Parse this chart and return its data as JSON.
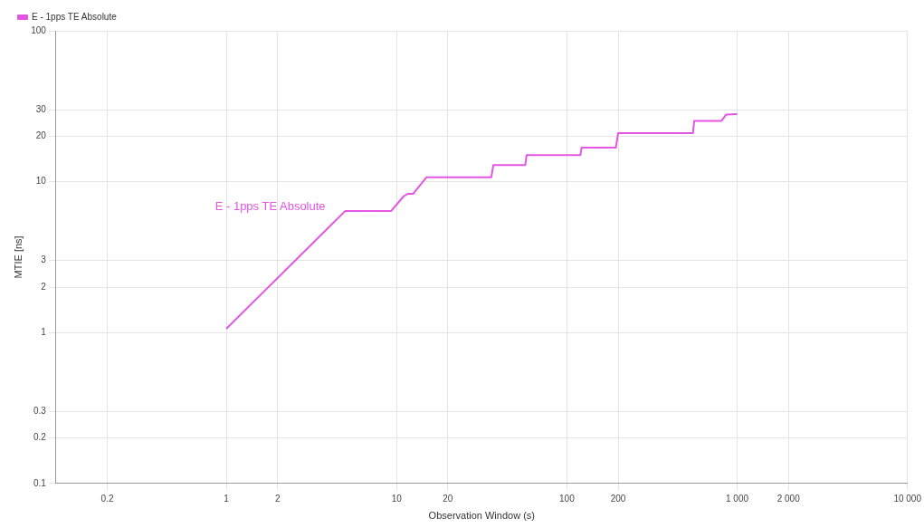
{
  "chart_data": {
    "type": "line",
    "xlabel": "Observation Window (s)",
    "ylabel": "MTIE [ns]",
    "log": "xy",
    "grid": true,
    "legend": "top left",
    "marker": "none",
    "line_style": "solid",
    "xlim": [
      0.1,
      10000
    ],
    "ylim": [
      0.1,
      100
    ],
    "xticks": [
      0.2,
      1,
      2,
      10,
      20,
      100,
      200,
      {
        "value": 1000,
        "label": "1 000"
      },
      {
        "value": 2000,
        "label": "2 000"
      },
      {
        "value": 10000,
        "label": "10 000"
      }
    ],
    "yticks": [
      0.1,
      0.2,
      0.3,
      1,
      2,
      3,
      10,
      20,
      30,
      100
    ],
    "series": [
      {
        "name": "E - 1pps TE Absolute",
        "color": "#e455e4",
        "x": [
          1,
          5,
          9.3,
          11,
          11.6,
          12.5,
          15,
          36,
          37,
          57,
          58,
          120,
          122,
          194,
          200,
          550,
          560,
          810,
          860,
          1000
        ],
        "values": [
          1.06,
          6.4,
          6.4,
          8,
          8.3,
          8.3,
          10.7,
          10.7,
          12.9,
          12.9,
          15,
          15,
          16.8,
          16.8,
          21,
          21,
          25.3,
          25.3,
          27.8,
          28
        ]
      }
    ]
  }
}
